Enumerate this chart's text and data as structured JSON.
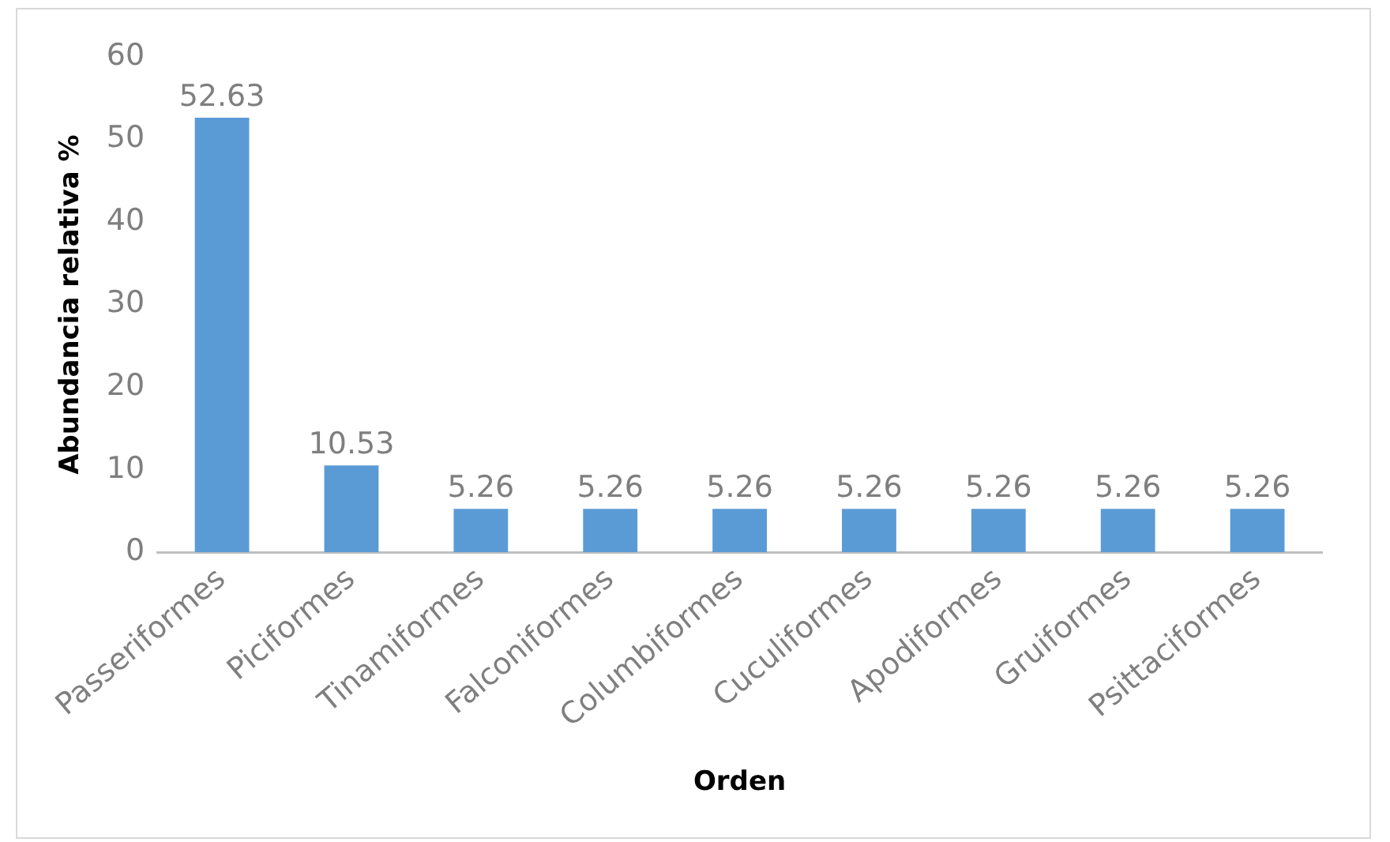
{
  "chart_data": {
    "type": "bar",
    "xlabel": "Orden",
    "ylabel": "Abundancia relativa %",
    "categories": [
      "Passeriformes",
      "Piciformes",
      "Tinamiformes",
      "Falconiformes",
      "Columbiformes",
      "Cuculiformes",
      "Apodiformes",
      "Gruiformes",
      "Psittaciformes"
    ],
    "values": [
      52.63,
      10.53,
      5.26,
      5.26,
      5.26,
      5.26,
      5.26,
      5.26,
      5.26
    ],
    "color": "#5b9bd5",
    "ylim": [
      0,
      60
    ],
    "yticks": [
      0,
      10,
      20,
      30,
      40,
      50,
      60
    ],
    "data_labels": true,
    "grid": false,
    "legend": false
  }
}
